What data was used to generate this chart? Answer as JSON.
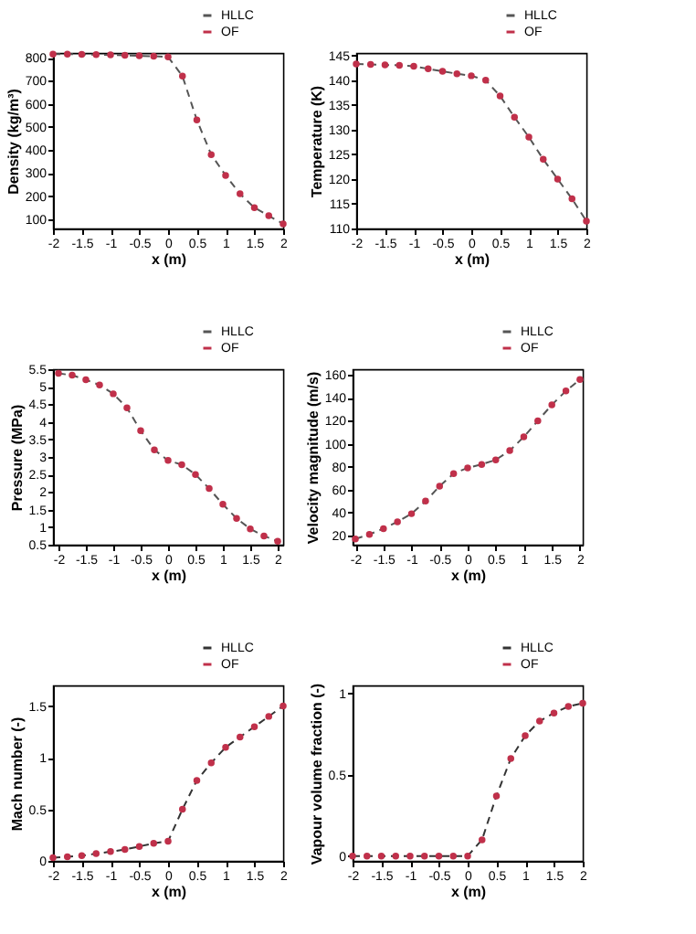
{
  "chart_data": [
    {
      "type": "line",
      "xlabel": "x (m)",
      "ylabel": "Density (kg/m³)",
      "xlim": [
        -2,
        2
      ],
      "xticks": [
        -2,
        -1.5,
        -1,
        -0.5,
        0,
        0.5,
        1,
        1.5,
        2
      ],
      "ylim": [
        60,
        820
      ],
      "yticks": [
        100,
        200,
        300,
        400,
        500,
        600,
        700,
        800
      ],
      "grid": false,
      "legend": "top right",
      "x": [
        -2,
        -1.75,
        -1.5,
        -1.25,
        -1,
        -0.75,
        -0.5,
        -0.25,
        0,
        0.25,
        0.5,
        0.75,
        1,
        1.25,
        1.5,
        1.75,
        2
      ],
      "series": [
        {
          "name": "HLLC",
          "type": "line",
          "line_style": "dashed",
          "marker": "none",
          "color": "#555555",
          "values": [
            815,
            815,
            814,
            813,
            812,
            810,
            808,
            806,
            803,
            720,
            530,
            380,
            290,
            210,
            150,
            115,
            80
          ]
        },
        {
          "name": "OF",
          "type": "scatter",
          "marker": "circle",
          "color": "#c0304a",
          "values": [
            815,
            815,
            814,
            813,
            812,
            810,
            808,
            806,
            803,
            720,
            530,
            380,
            290,
            210,
            150,
            115,
            80
          ]
        }
      ]
    },
    {
      "type": "line",
      "xlabel": "x (m)",
      "ylabel": "Temperature (K)",
      "xlim": [
        -2,
        2
      ],
      "xticks": [
        -2,
        -1.5,
        -1,
        -0.5,
        0,
        0.5,
        1,
        1.5,
        2
      ],
      "ylim": [
        110,
        145.5
      ],
      "yticks": [
        110,
        115,
        120,
        125,
        130,
        135,
        140,
        145
      ],
      "grid": false,
      "legend": "top right",
      "x": [
        -2,
        -1.75,
        -1.5,
        -1.25,
        -1,
        -0.75,
        -0.5,
        -0.25,
        0,
        0.25,
        0.5,
        0.75,
        1,
        1.25,
        1.5,
        1.75,
        2
      ],
      "series": [
        {
          "name": "HLLC",
          "type": "line",
          "line_style": "dashed",
          "marker": "none",
          "color": "#555555",
          "values": [
            143.3,
            143.2,
            143.1,
            143.0,
            142.8,
            142.3,
            141.8,
            141.3,
            140.9,
            140.0,
            136.8,
            132.5,
            128.5,
            124.0,
            120.0,
            116.0,
            111.5
          ]
        },
        {
          "name": "OF",
          "type": "scatter",
          "marker": "circle",
          "color": "#c0304a",
          "values": [
            143.3,
            143.2,
            143.1,
            143.0,
            142.8,
            142.3,
            141.8,
            141.3,
            140.9,
            140.0,
            136.8,
            132.5,
            128.5,
            124.0,
            120.0,
            116.0,
            111.5
          ]
        }
      ]
    },
    {
      "type": "line",
      "xlabel": "x (m)",
      "ylabel": "Pressure (MPa)",
      "xlim": [
        -2.1,
        2.1
      ],
      "xticks": [
        -2,
        -1.5,
        -1,
        -0.5,
        0,
        0.5,
        1,
        1.5,
        2
      ],
      "ylim": [
        0.5,
        5.5
      ],
      "yticks": [
        0.5,
        1,
        1.5,
        2,
        2.5,
        3,
        3.5,
        4,
        4.5,
        5,
        5.5
      ],
      "grid": false,
      "legend": "top right",
      "x": [
        -2,
        -1.75,
        -1.5,
        -1.25,
        -1,
        -0.75,
        -0.5,
        -0.25,
        0,
        0.25,
        0.5,
        0.75,
        1,
        1.25,
        1.5,
        1.75,
        2
      ],
      "series": [
        {
          "name": "HLLC",
          "type": "line",
          "line_style": "dashed",
          "marker": "none",
          "color": "#555555",
          "values": [
            5.38,
            5.33,
            5.2,
            5.05,
            4.8,
            4.4,
            3.75,
            3.2,
            2.9,
            2.78,
            2.5,
            2.1,
            1.65,
            1.25,
            0.95,
            0.75,
            0.6
          ]
        },
        {
          "name": "OF",
          "type": "scatter",
          "marker": "circle",
          "color": "#c0304a",
          "values": [
            5.38,
            5.33,
            5.2,
            5.05,
            4.8,
            4.4,
            3.75,
            3.2,
            2.9,
            2.78,
            2.5,
            2.1,
            1.65,
            1.25,
            0.95,
            0.75,
            0.6
          ]
        }
      ]
    },
    {
      "type": "line",
      "xlabel": "x (m)",
      "ylabel": "Velocity magnitude (m/s)",
      "xlim": [
        -2.05,
        2.05
      ],
      "xticks": [
        -2,
        -1.5,
        -1,
        -0.5,
        0,
        0.5,
        1,
        1.5,
        2
      ],
      "ylim": [
        12,
        165
      ],
      "yticks": [
        20,
        40,
        60,
        80,
        100,
        120,
        140,
        160
      ],
      "grid": false,
      "legend": "top right",
      "x": [
        -2,
        -1.75,
        -1.5,
        -1.25,
        -1,
        -0.75,
        -0.5,
        -0.25,
        0,
        0.25,
        0.5,
        0.75,
        1,
        1.25,
        1.5,
        1.75,
        2
      ],
      "series": [
        {
          "name": "HLLC",
          "type": "line",
          "line_style": "dashed",
          "marker": "none",
          "color": "#555555",
          "values": [
            17,
            21,
            26,
            32,
            39,
            50,
            63,
            74,
            79,
            82,
            86,
            94,
            106,
            120,
            134,
            146,
            156
          ]
        },
        {
          "name": "OF",
          "type": "scatter",
          "marker": "circle",
          "color": "#c0304a",
          "values": [
            17,
            21,
            26,
            32,
            39,
            50,
            63,
            74,
            79,
            82,
            86,
            94,
            106,
            120,
            134,
            146,
            156
          ]
        }
      ]
    },
    {
      "type": "line",
      "xlabel": "x (m)",
      "ylabel": "Mach number (-)",
      "xlim": [
        -2,
        2
      ],
      "xticks": [
        -2,
        -1.5,
        -1,
        -0.5,
        0,
        0.5,
        1,
        1.5,
        2
      ],
      "ylim": [
        0,
        1.7
      ],
      "yticks": [
        0,
        0.5,
        1,
        1.5
      ],
      "grid": false,
      "legend": "top right",
      "x": [
        -2,
        -1.75,
        -1.5,
        -1.25,
        -1,
        -0.75,
        -0.5,
        -0.25,
        0,
        0.25,
        0.5,
        0.75,
        1,
        1.25,
        1.5,
        1.75,
        2
      ],
      "series": [
        {
          "name": "HLLC",
          "type": "line",
          "line_style": "dashed",
          "marker": "none",
          "color": "#333333",
          "values": [
            0.03,
            0.04,
            0.05,
            0.07,
            0.09,
            0.11,
            0.14,
            0.17,
            0.19,
            0.5,
            0.78,
            0.95,
            1.1,
            1.2,
            1.3,
            1.4,
            1.5
          ]
        },
        {
          "name": "OF",
          "type": "scatter",
          "marker": "circle",
          "color": "#c0304a",
          "values": [
            0.03,
            0.04,
            0.05,
            0.07,
            0.09,
            0.11,
            0.14,
            0.17,
            0.19,
            0.5,
            0.78,
            0.95,
            1.1,
            1.2,
            1.3,
            1.4,
            1.5
          ]
        }
      ]
    },
    {
      "type": "line",
      "xlabel": "x (m)",
      "ylabel": "Vapour volume fraction (-)",
      "xlim": [
        -2,
        2
      ],
      "xticks": [
        -2,
        -1.5,
        -1,
        -0.5,
        0,
        0.5,
        1,
        1.5,
        2
      ],
      "ylim": [
        -0.03,
        1.05
      ],
      "yticks": [
        0,
        0.5,
        1
      ],
      "grid": false,
      "legend": "top right",
      "x": [
        -2,
        -1.75,
        -1.5,
        -1.25,
        -1,
        -0.75,
        -0.5,
        -0.25,
        0,
        0.25,
        0.5,
        0.75,
        1,
        1.25,
        1.5,
        1.75,
        2
      ],
      "series": [
        {
          "name": "HLLC",
          "type": "line",
          "line_style": "dashed",
          "marker": "none",
          "color": "#333333",
          "values": [
            0,
            0,
            0,
            0,
            0,
            0,
            0,
            0,
            0,
            0.1,
            0.37,
            0.6,
            0.74,
            0.83,
            0.88,
            0.92,
            0.94
          ]
        },
        {
          "name": "OF",
          "type": "scatter",
          "marker": "circle",
          "color": "#c0304a",
          "values": [
            0,
            0,
            0,
            0,
            0,
            0,
            0,
            0,
            0,
            0.1,
            0.37,
            0.6,
            0.74,
            0.83,
            0.88,
            0.92,
            0.94
          ]
        }
      ]
    }
  ]
}
